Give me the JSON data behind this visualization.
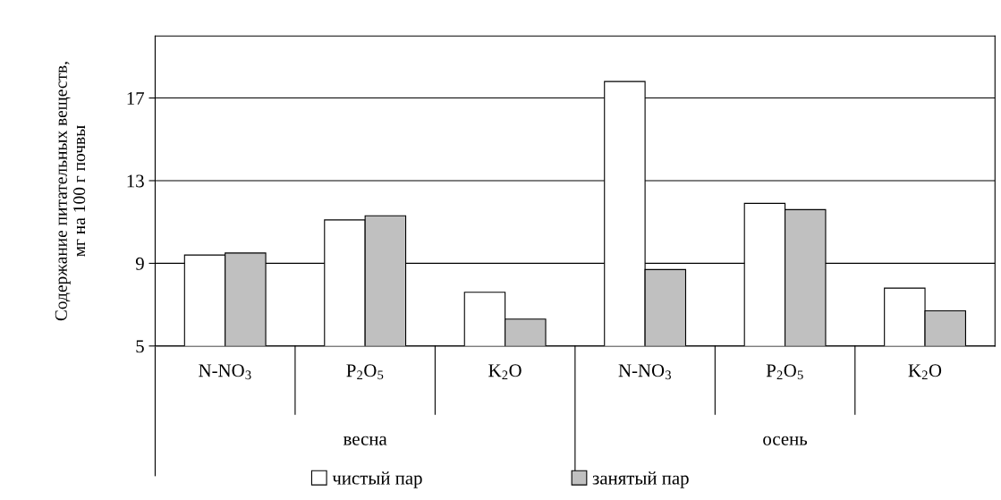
{
  "chart_data": {
    "type": "bar",
    "ylabel": "Содержание питательных веществ,\nмг на 100 г почвы",
    "categories": [
      "N-NO$_{3}$",
      "P$_{2}$O$_{5}$",
      "K$_{2}$O",
      "N-NO$_{3}$",
      "P$_{2}$O$_{5}$",
      "K$_{2}$O"
    ],
    "annotations": [
      "весна",
      "осень"
    ],
    "series": [
      {
        "name": "чистый пар",
        "color": "#ffffff",
        "values": [
          9.4,
          11.1,
          7.6,
          17.8,
          11.9,
          7.8
        ]
      },
      {
        "name": "занятый пар",
        "color": "#c0c0c0",
        "values": [
          9.5,
          11.3,
          6.3,
          8.7,
          11.6,
          6.7
        ]
      }
    ],
    "ylim": [
      5,
      20
    ],
    "yticks": [
      5,
      9,
      13,
      17
    ],
    "grid": "y",
    "legend": "bottom"
  }
}
